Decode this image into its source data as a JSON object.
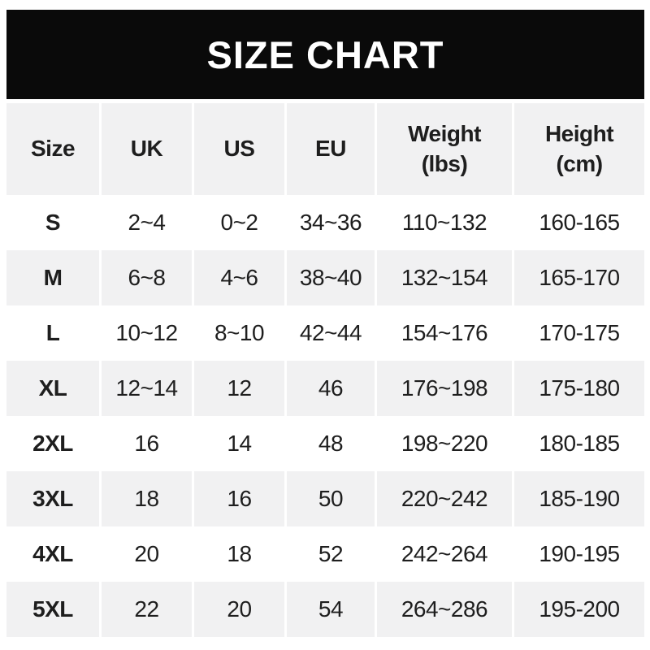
{
  "banner": {
    "title": "SIZE CHART"
  },
  "colors": {
    "banner_bg": "#0a0a0a",
    "banner_text": "#ffffff",
    "row_alt_bg": "#f1f1f2",
    "row_bg": "#ffffff",
    "text": "#1e1e1e"
  },
  "table": {
    "headers": [
      {
        "label": "Size",
        "sub": ""
      },
      {
        "label": "UK",
        "sub": ""
      },
      {
        "label": "US",
        "sub": ""
      },
      {
        "label": "EU",
        "sub": ""
      },
      {
        "label": "Weight",
        "sub": "(lbs)"
      },
      {
        "label": "Height",
        "sub": "(cm)"
      }
    ],
    "rows": [
      {
        "size": "S",
        "uk": "2~4",
        "us": "0~2",
        "eu": "34~36",
        "weight": "110~132",
        "height": "160-165"
      },
      {
        "size": "M",
        "uk": "6~8",
        "us": "4~6",
        "eu": "38~40",
        "weight": "132~154",
        "height": "165-170"
      },
      {
        "size": "L",
        "uk": "10~12",
        "us": "8~10",
        "eu": "42~44",
        "weight": "154~176",
        "height": "170-175"
      },
      {
        "size": "XL",
        "uk": "12~14",
        "us": "12",
        "eu": "46",
        "weight": "176~198",
        "height": "175-180"
      },
      {
        "size": "2XL",
        "uk": "16",
        "us": "14",
        "eu": "48",
        "weight": "198~220",
        "height": "180-185"
      },
      {
        "size": "3XL",
        "uk": "18",
        "us": "16",
        "eu": "50",
        "weight": "220~242",
        "height": "185-190"
      },
      {
        "size": "4XL",
        "uk": "20",
        "us": "18",
        "eu": "52",
        "weight": "242~264",
        "height": "190-195"
      },
      {
        "size": "5XL",
        "uk": "22",
        "us": "20",
        "eu": "54",
        "weight": "264~286",
        "height": "195-200"
      }
    ]
  },
  "chart_data": {
    "type": "table",
    "title": "SIZE CHART",
    "columns": [
      "Size",
      "UK",
      "US",
      "EU",
      "Weight (lbs)",
      "Height (cm)"
    ],
    "rows": [
      [
        "S",
        "2~4",
        "0~2",
        "34~36",
        "110~132",
        "160-165"
      ],
      [
        "M",
        "6~8",
        "4~6",
        "38~40",
        "132~154",
        "165-170"
      ],
      [
        "L",
        "10~12",
        "8~10",
        "42~44",
        "154~176",
        "170-175"
      ],
      [
        "XL",
        "12~14",
        "12",
        "46",
        "176~198",
        "175-180"
      ],
      [
        "2XL",
        "16",
        "14",
        "48",
        "198~220",
        "180-185"
      ],
      [
        "3XL",
        "18",
        "16",
        "50",
        "220~242",
        "185-190"
      ],
      [
        "4XL",
        "20",
        "18",
        "52",
        "242~264",
        "190-195"
      ],
      [
        "5XL",
        "22",
        "20",
        "54",
        "264~286",
        "195-200"
      ]
    ],
    "layout": {
      "header_background": "#f1f1f2",
      "alternating_rows": true,
      "title_banner": "black"
    }
  }
}
